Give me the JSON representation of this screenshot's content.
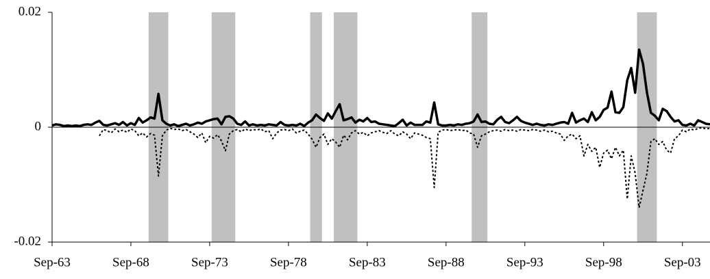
{
  "chart_data": {
    "type": "line",
    "categories": [
      "Sep-63",
      null,
      null,
      null,
      null,
      null,
      null,
      null,
      null,
      null,
      null,
      null,
      null,
      null,
      null,
      null,
      null,
      null,
      null,
      null,
      "Sep-68",
      null,
      null,
      null,
      null,
      null,
      null,
      null,
      null,
      null,
      null,
      null,
      null,
      null,
      null,
      null,
      null,
      null,
      null,
      null,
      "Sep-73",
      null,
      null,
      null,
      null,
      null,
      null,
      null,
      null,
      null,
      null,
      null,
      null,
      null,
      null,
      null,
      null,
      null,
      null,
      null,
      "Sep-78",
      null,
      null,
      null,
      null,
      null,
      null,
      null,
      null,
      null,
      null,
      null,
      null,
      null,
      null,
      null,
      null,
      null,
      null,
      null,
      "Sep-83",
      null,
      null,
      null,
      null,
      null,
      null,
      null,
      null,
      null,
      null,
      null,
      null,
      null,
      null,
      null,
      null,
      null,
      null,
      null,
      "Sep-88",
      null,
      null,
      null,
      null,
      null,
      null,
      null,
      null,
      null,
      null,
      null,
      null,
      null,
      null,
      null,
      null,
      null,
      null,
      null,
      "Sep-93",
      null,
      null,
      null,
      null,
      null,
      null,
      null,
      null,
      null,
      null,
      null,
      null,
      null,
      null,
      null,
      null,
      null,
      null,
      null,
      "Sep-98",
      null,
      null,
      null,
      null,
      null,
      null,
      null,
      null,
      null,
      null,
      null,
      null,
      null,
      null,
      null,
      null,
      null,
      null,
      null,
      "Sep-03",
      null,
      null,
      null,
      null,
      null,
      null,
      null
    ],
    "series": [
      {
        "color": "#000000",
        "style": "solid",
        "values": [
          0.0003,
          0.0005,
          0.0004,
          0.0002,
          0.0003,
          0.0002,
          0.0003,
          0.0002,
          0.0004,
          0.0005,
          0.0004,
          0.0008,
          0.0011,
          0.0004,
          0.0003,
          0.0005,
          0.0007,
          0.0004,
          0.0009,
          0.0003,
          0.0007,
          0.0004,
          0.0016,
          0.0008,
          0.0012,
          0.0017,
          0.0015,
          0.0058,
          0.0012,
          0.0006,
          0.0003,
          0.0005,
          0.0002,
          0.0004,
          0.0006,
          0.0003,
          0.0005,
          0.0008,
          0.0006,
          0.001,
          0.0012,
          0.0014,
          0.0015,
          0.0005,
          0.0018,
          0.0019,
          0.0015,
          0.0006,
          0.0004,
          0.001,
          0.0003,
          0.0005,
          0.0003,
          0.0004,
          0.0003,
          0.0005,
          0.0004,
          0.0003,
          0.0009,
          0.0004,
          0.0003,
          0.0004,
          0.0003,
          0.0006,
          0.0002,
          0.0008,
          0.0012,
          0.0022,
          0.0016,
          0.0011,
          0.0024,
          0.0015,
          0.0028,
          0.004,
          0.0012,
          0.0014,
          0.0017,
          0.0008,
          0.0013,
          0.001,
          0.0016,
          0.0009,
          0.001,
          0.0006,
          0.0005,
          0.0004,
          0.0003,
          0.0002,
          0.0007,
          0.0013,
          0.0003,
          0.0008,
          0.0004,
          0.0004,
          0.0004,
          0.001,
          0.0008,
          0.0043,
          0.0005,
          0.0003,
          0.0003,
          0.0004,
          0.0003,
          0.0005,
          0.0004,
          0.0006,
          0.0007,
          0.001,
          0.0022,
          0.0009,
          0.001,
          0.0006,
          0.0005,
          0.0013,
          0.0018,
          0.0009,
          0.0007,
          0.0012,
          0.0018,
          0.0011,
          0.0008,
          0.0006,
          0.0004,
          0.0006,
          0.0004,
          0.0003,
          0.0005,
          0.0004,
          0.0006,
          0.0008,
          0.0009,
          0.0006,
          0.0025,
          0.0008,
          0.0012,
          0.0015,
          0.0009,
          0.0026,
          0.0012,
          0.0018,
          0.003,
          0.0034,
          0.0062,
          0.0026,
          0.0025,
          0.0035,
          0.0082,
          0.0103,
          0.006,
          0.0135,
          0.011,
          0.006,
          0.0025,
          0.002,
          0.0012,
          0.0032,
          0.0028,
          0.0018,
          0.001,
          0.0012,
          0.0004,
          0.0003,
          0.0006,
          0.0003,
          0.0012,
          0.0009,
          0.0006,
          0.0005
        ]
      },
      {
        "color": "#000000",
        "style": "dotted",
        "values": [
          null,
          null,
          null,
          null,
          null,
          null,
          null,
          null,
          null,
          null,
          null,
          null,
          -0.0015,
          -0.0004,
          -0.0006,
          -0.001,
          -0.0003,
          -0.0008,
          -0.0005,
          -0.0009,
          -0.0003,
          -0.0006,
          -0.0015,
          -0.001,
          -0.0017,
          -0.0011,
          -0.0014,
          -0.0085,
          -0.0015,
          -0.0005,
          -0.0002,
          -0.0004,
          -0.0003,
          -0.0006,
          -0.0004,
          -0.0008,
          -0.0012,
          -0.0018,
          -0.001,
          -0.0027,
          -0.0016,
          -0.0019,
          -0.0013,
          -0.0024,
          -0.0041,
          -0.0012,
          -0.0006,
          -0.0004,
          -0.0008,
          -0.0003,
          -0.0006,
          -0.0004,
          -0.0005,
          -0.0003,
          -0.0008,
          -0.0006,
          -0.002,
          -0.001,
          -0.0005,
          -0.0004,
          -0.0006,
          -0.0003,
          -0.001,
          -0.0007,
          -0.0005,
          -0.0012,
          -0.0021,
          -0.0035,
          -0.0018,
          -0.0012,
          -0.003,
          -0.002,
          -0.0026,
          -0.0035,
          -0.0014,
          -0.0022,
          -0.001,
          -0.0006,
          -0.0012,
          -0.0009,
          -0.0015,
          -0.001,
          -0.0008,
          -0.0006,
          -0.0009,
          -0.0011,
          -0.0006,
          -0.0012,
          -0.0015,
          -0.0008,
          -0.0012,
          -0.002,
          -0.001,
          -0.0012,
          -0.0014,
          -0.0018,
          -0.002,
          -0.0105,
          -0.0009,
          -0.0005,
          -0.0004,
          -0.0006,
          -0.0005,
          -0.0004,
          -0.0006,
          -0.0005,
          -0.001,
          -0.0012,
          -0.0035,
          -0.0015,
          -0.0012,
          -0.0008,
          -0.0006,
          -0.0005,
          -0.0007,
          -0.0004,
          -0.0006,
          -0.0005,
          -0.0007,
          -0.0004,
          -0.0005,
          -0.0006,
          -0.0004,
          -0.0005,
          -0.0007,
          -0.0005,
          -0.0008,
          -0.0007,
          -0.001,
          -0.0012,
          -0.0023,
          -0.0015,
          -0.0012,
          -0.002,
          -0.0015,
          -0.005,
          -0.003,
          -0.0042,
          -0.0035,
          -0.007,
          -0.0045,
          -0.004,
          -0.0055,
          -0.0035,
          -0.005,
          -0.004,
          -0.0125,
          -0.005,
          -0.008,
          -0.014,
          -0.011,
          -0.008,
          -0.0025,
          -0.002,
          -0.003,
          -0.0025,
          -0.004,
          -0.0045,
          -0.002,
          -0.0015,
          -0.0005,
          -0.0008,
          -0.0003,
          -0.0005,
          -0.0002,
          -0.0001,
          -0.0003,
          -0.0002
        ]
      }
    ],
    "recession_bands": [
      [
        25,
        29
      ],
      [
        41,
        46
      ],
      [
        66,
        68
      ],
      [
        72,
        77
      ],
      [
        107,
        110
      ],
      [
        149,
        153
      ]
    ],
    "band_color": "#c0c0c0",
    "ylim": [
      -0.02,
      0.02
    ],
    "yticks": [
      -0.02,
      0,
      0.02
    ],
    "grid": false
  }
}
